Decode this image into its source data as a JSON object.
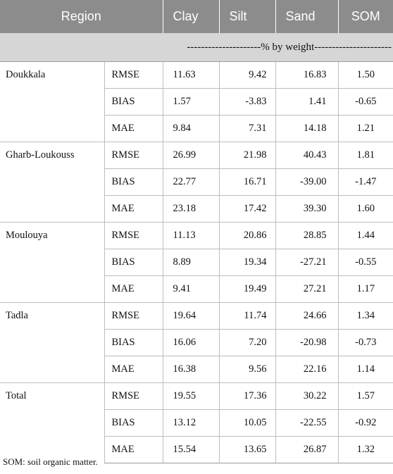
{
  "header": {
    "region": "Region",
    "clay": "Clay",
    "silt": "Silt",
    "sand": "Sand",
    "som": "SOM",
    "unit_line": "---------------------% by weight----------------------"
  },
  "groups": [
    {
      "region": "Doukkala",
      "rows": [
        {
          "metric": "RMSE",
          "clay": "11.63",
          "silt": "9.42",
          "sand": "16.83",
          "som": "1.50"
        },
        {
          "metric": "BIAS",
          "clay": "1.57",
          "silt": "-3.83",
          "sand": "1.41",
          "som": "-0.65"
        },
        {
          "metric": "MAE",
          "clay": "9.84",
          "silt": "7.31",
          "sand": "14.18",
          "som": "1.21"
        }
      ]
    },
    {
      "region": "Gharb-Loukouss",
      "rows": [
        {
          "metric": "RMSE",
          "clay": "26.99",
          "silt": "21.98",
          "sand": "40.43",
          "som": "1.81"
        },
        {
          "metric": "BIAS",
          "clay": "22.77",
          "silt": "16.71",
          "sand": "-39.00",
          "som": "-1.47"
        },
        {
          "metric": "MAE",
          "clay": "23.18",
          "silt": "17.42",
          "sand": "39.30",
          "som": "1.60"
        }
      ]
    },
    {
      "region": "Moulouya",
      "rows": [
        {
          "metric": "RMSE",
          "clay": "11.13",
          "silt": "20.86",
          "sand": "28.85",
          "som": "1.44"
        },
        {
          "metric": "BIAS",
          "clay": "8.89",
          "silt": "19.34",
          "sand": "-27.21",
          "som": "-0.55"
        },
        {
          "metric": "MAE",
          "clay": "9.41",
          "silt": "19.49",
          "sand": "27.21",
          "som": "1.17"
        }
      ]
    },
    {
      "region": "Tadla",
      "rows": [
        {
          "metric": "RMSE",
          "clay": "19.64",
          "silt": "11.74",
          "sand": "24.66",
          "som": "1.34"
        },
        {
          "metric": "BIAS",
          "clay": "16.06",
          "silt": "7.20",
          "sand": "-20.98",
          "som": "-0.73"
        },
        {
          "metric": "MAE",
          "clay": "16.38",
          "silt": "9.56",
          "sand": "22.16",
          "som": "1.14"
        }
      ]
    },
    {
      "region": "Total",
      "rows": [
        {
          "metric": "RMSE",
          "clay": "19.55",
          "silt": "17.36",
          "sand": "30.22",
          "som": "1.57"
        },
        {
          "metric": "BIAS",
          "clay": "13.12",
          "silt": "10.05",
          "sand": "-22.55",
          "som": "-0.92"
        },
        {
          "metric": "MAE",
          "clay": "15.54",
          "silt": "13.65",
          "sand": "26.87",
          "som": "1.32"
        }
      ]
    }
  ],
  "footnote": "SOM: soil organic matter."
}
